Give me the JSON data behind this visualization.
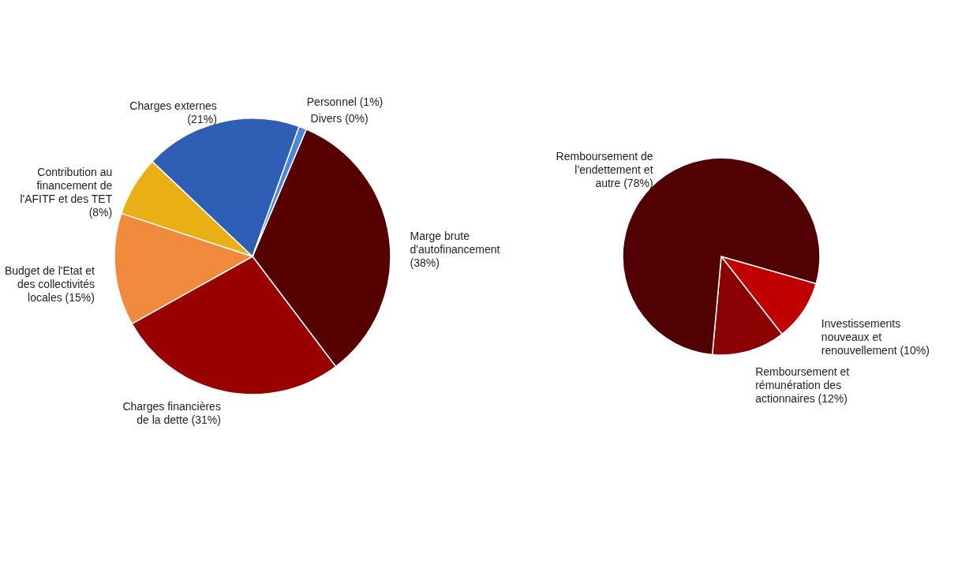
{
  "chart_data": [
    {
      "type": "pie",
      "categories": [
        "Marge brute d'autofinancement",
        "Charges financières de la dette",
        "Budget de l'Etat et des collectivités locales",
        "Contribution au financement de l'AFITF et des TET",
        "Charges externes",
        "Personnel",
        "Divers"
      ],
      "values": [
        38,
        31,
        15,
        8,
        21,
        1,
        0
      ],
      "value_labels": [
        "(38%)",
        "(31%)",
        "(15%)",
        "(8%)",
        "(21%)",
        "(1%)",
        "(0%)"
      ],
      "colors": [
        "#560000",
        "#990000",
        "#f08a3c",
        "#e8b014",
        "#2e5fb5",
        "#4a86e0",
        "#8ab4f0"
      ]
    },
    {
      "type": "pie",
      "categories": [
        "Investissements nouveaux et renouvellement",
        "Remboursement et rémunération des actionnaires",
        "Remboursement de l'endettement et autre"
      ],
      "values": [
        10,
        12,
        78
      ],
      "value_labels": [
        "(10%)",
        "(12%)",
        "(78%)"
      ],
      "colors": [
        "#c00000",
        "#8b0000",
        "#500000"
      ]
    }
  ]
}
